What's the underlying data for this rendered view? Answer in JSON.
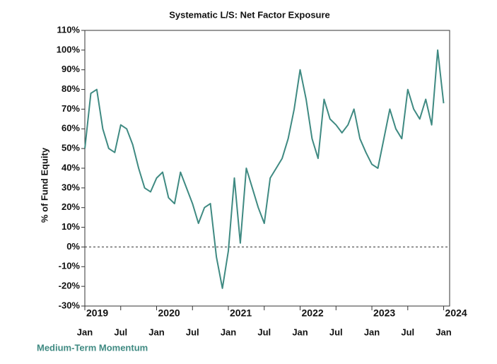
{
  "chart_data": {
    "type": "line",
    "title": "Systematic L/S: Net Factor Exposure",
    "y_label": "% of Fund Equity",
    "footer": "Medium-Term Momentum",
    "x": [
      "2019-01",
      "2019-02",
      "2019-03",
      "2019-04",
      "2019-05",
      "2019-06",
      "2019-07",
      "2019-08",
      "2019-09",
      "2019-10",
      "2019-11",
      "2019-12",
      "2020-01",
      "2020-02",
      "2020-03",
      "2020-04",
      "2020-05",
      "2020-06",
      "2020-07",
      "2020-08",
      "2020-09",
      "2020-10",
      "2020-11",
      "2020-12",
      "2021-01",
      "2021-02",
      "2021-03",
      "2021-04",
      "2021-05",
      "2021-06",
      "2021-07",
      "2021-08",
      "2021-09",
      "2021-10",
      "2021-11",
      "2021-12",
      "2022-01",
      "2022-02",
      "2022-03",
      "2022-04",
      "2022-05",
      "2022-06",
      "2022-07",
      "2022-08",
      "2022-09",
      "2022-10",
      "2022-11",
      "2022-12",
      "2023-01",
      "2023-02",
      "2023-03",
      "2023-04",
      "2023-05",
      "2023-06",
      "2023-07",
      "2023-08",
      "2023-09",
      "2023-10",
      "2023-11",
      "2023-12",
      "2024-01"
    ],
    "series": [
      {
        "name": "Medium-Term Momentum",
        "color": "#3f8a82",
        "values": [
          50,
          78,
          80,
          60,
          50,
          48,
          62,
          60,
          52,
          40,
          30,
          28,
          35,
          38,
          25,
          22,
          38,
          30,
          22,
          12,
          20,
          22,
          -5,
          -21,
          -2,
          35,
          2,
          40,
          30,
          20,
          12,
          35,
          40,
          45,
          55,
          70,
          90,
          75,
          55,
          45,
          75,
          65,
          62,
          58,
          62,
          70,
          55,
          48,
          42,
          40,
          55,
          70,
          60,
          55,
          80,
          70,
          65,
          75,
          62,
          100,
          73
        ]
      }
    ],
    "xlim": [
      "2019-01",
      "2024-02"
    ],
    "xticks": [
      {
        "value": "2019-01",
        "label": "Jan"
      },
      {
        "value": "2019-07",
        "label": "Jul"
      },
      {
        "value": "2020-01",
        "label": "Jan"
      },
      {
        "value": "2020-07",
        "label": "Jul"
      },
      {
        "value": "2021-01",
        "label": "Jan"
      },
      {
        "value": "2021-07",
        "label": "Jul"
      },
      {
        "value": "2022-01",
        "label": "Jan"
      },
      {
        "value": "2022-07",
        "label": "Jul"
      },
      {
        "value": "2023-01",
        "label": "Jan"
      },
      {
        "value": "2023-07",
        "label": "Jul"
      },
      {
        "value": "2024-01",
        "label": "Jan"
      }
    ],
    "year_labels": [
      {
        "value": "2019-01",
        "label": "2019"
      },
      {
        "value": "2020-01",
        "label": "2020"
      },
      {
        "value": "2021-01",
        "label": "2021"
      },
      {
        "value": "2022-01",
        "label": "2022"
      },
      {
        "value": "2023-01",
        "label": "2023"
      },
      {
        "value": "2024-01",
        "label": "2024"
      }
    ],
    "ylim": [
      -30,
      110
    ],
    "yticks": [
      {
        "value": 110,
        "label": "110%"
      },
      {
        "value": 100,
        "label": "100%"
      },
      {
        "value": 90,
        "label": "90%"
      },
      {
        "value": 80,
        "label": "80%"
      },
      {
        "value": 70,
        "label": "70%"
      },
      {
        "value": 60,
        "label": "60%"
      },
      {
        "value": 50,
        "label": "50%"
      },
      {
        "value": 40,
        "label": "40%"
      },
      {
        "value": 30,
        "label": "30%"
      },
      {
        "value": 20,
        "label": "20%"
      },
      {
        "value": 10,
        "label": "10%"
      },
      {
        "value": 0,
        "label": "0%"
      },
      {
        "value": -10,
        "label": "-10%"
      },
      {
        "value": -20,
        "label": "-20%"
      },
      {
        "value": -30,
        "label": "-30%"
      }
    ],
    "zero_line": true
  }
}
